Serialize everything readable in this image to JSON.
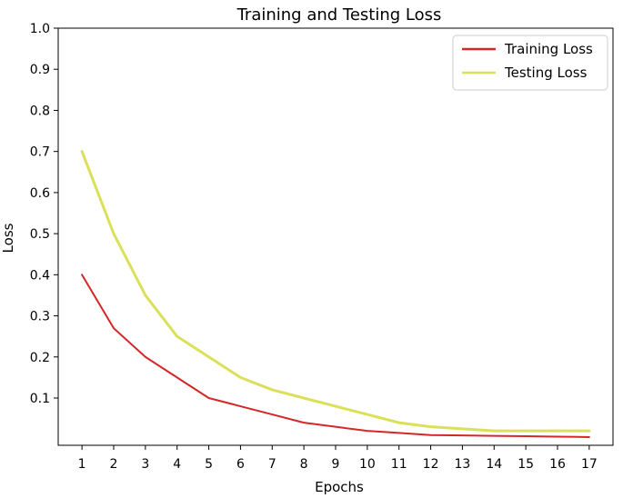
{
  "chart_data": {
    "type": "line",
    "title": "Training and Testing Loss",
    "xlabel": "Epochs",
    "ylabel": "Loss",
    "x": [
      1,
      2,
      3,
      4,
      5,
      6,
      7,
      8,
      9,
      10,
      11,
      12,
      13,
      14,
      15,
      16,
      17
    ],
    "xlim": [
      0.25,
      17.75
    ],
    "ylim": [
      -0.015,
      1.0
    ],
    "xticks": [
      "1",
      "2",
      "3",
      "4",
      "5",
      "6",
      "7",
      "8",
      "9",
      "10",
      "11",
      "12",
      "13",
      "14",
      "15",
      "16",
      "17"
    ],
    "yticks": [
      {
        "value": 0.1,
        "label": "0.1"
      },
      {
        "value": 0.2,
        "label": "0.2"
      },
      {
        "value": 0.3,
        "label": "0.3"
      },
      {
        "value": 0.4,
        "label": "0.4"
      },
      {
        "value": 0.5,
        "label": "0.5"
      },
      {
        "value": 0.6,
        "label": "0.6"
      },
      {
        "value": 0.7,
        "label": "0.7"
      },
      {
        "value": 0.8,
        "label": "0.8"
      },
      {
        "value": 0.9,
        "label": "0.9"
      },
      {
        "value": 1.0,
        "label": "1.0"
      }
    ],
    "grid": false,
    "legend_position": "top-right",
    "series": [
      {
        "name": "Training Loss",
        "color": "#d62728",
        "values": [
          0.4,
          0.27,
          0.2,
          0.15,
          0.1,
          0.08,
          0.06,
          0.04,
          0.03,
          0.02,
          0.015,
          0.01,
          0.009,
          0.008,
          0.007,
          0.006,
          0.005
        ]
      },
      {
        "name": "Testing Loss",
        "color": "#dbe05a",
        "values": [
          0.7,
          0.5,
          0.35,
          0.25,
          0.2,
          0.15,
          0.12,
          0.1,
          0.08,
          0.06,
          0.04,
          0.03,
          0.025,
          0.02,
          0.02,
          0.02,
          0.02
        ]
      }
    ]
  }
}
